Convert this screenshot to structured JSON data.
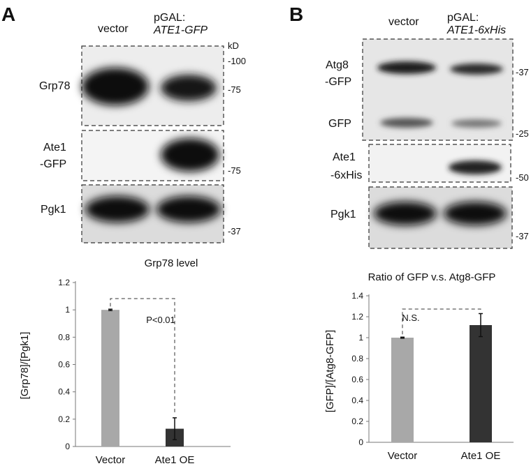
{
  "panel_a": {
    "letter": "A",
    "col_vector": "vector",
    "col_pgal": "pGAL:",
    "col_construct": "ATE1-GFP",
    "kd": "kD",
    "blots": [
      {
        "label": [
          "Grp78"
        ],
        "markers": [
          "-100",
          "-75"
        ]
      },
      {
        "label": [
          "Ate1",
          "-GFP"
        ],
        "markers": [
          "-75"
        ]
      },
      {
        "label": [
          "Pgk1"
        ],
        "markers": [
          "-37"
        ]
      }
    ]
  },
  "panel_b": {
    "letter": "B",
    "col_vector": "vector",
    "col_pgal": "pGAL:",
    "col_construct": "ATE1-6xHis",
    "blots": [
      {
        "label": [
          "Atg8",
          "-GFP",
          "GFP"
        ],
        "markers": [
          "-37",
          "-25"
        ]
      },
      {
        "label": [
          "Ate1",
          "-6xHis"
        ],
        "markers": [
          "-50"
        ]
      },
      {
        "label": [
          "Pgk1"
        ],
        "markers": [
          "-37"
        ]
      }
    ]
  },
  "chart_data": [
    {
      "type": "bar",
      "title": "Grp78 level",
      "xlabel": "",
      "ylabel": "[Grp78]/[Pgk1]",
      "categories": [
        "Vector",
        "Ate1 OE"
      ],
      "values": [
        1.0,
        0.13
      ],
      "errors": [
        0.005,
        0.08
      ],
      "colors": [
        "#a8a8a8",
        "#333333"
      ],
      "ylim": [
        0,
        1.2
      ],
      "yticks": [
        "0",
        "0.2",
        "0.4",
        "0.6",
        "0.8",
        "1",
        "1.2"
      ],
      "significance": "P<0.01"
    },
    {
      "type": "bar",
      "title": "Ratio of GFP v.s. Atg8-GFP",
      "xlabel": "",
      "ylabel": "[GFP]/[Atg8-GFP]",
      "categories": [
        "Vector",
        "Ate1 OE"
      ],
      "values": [
        1.0,
        1.12
      ],
      "errors": [
        0.005,
        0.11
      ],
      "colors": [
        "#a8a8a8",
        "#333333"
      ],
      "ylim": [
        0,
        1.4
      ],
      "yticks": [
        "0",
        "0.2",
        "0.4",
        "0.6",
        "0.8",
        "1",
        "1.2",
        "1.4"
      ],
      "significance": "N.S."
    }
  ]
}
